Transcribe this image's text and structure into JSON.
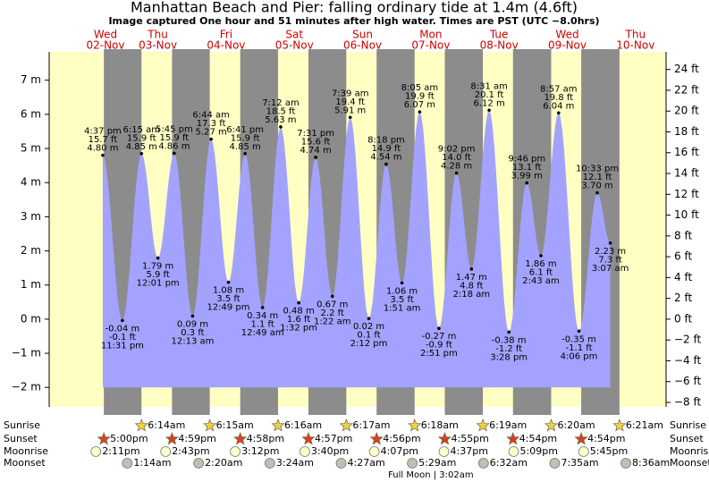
{
  "chart_data": {
    "type": "tide",
    "title": "Manhattan Beach and Pier: falling  ordinary tide at 1.4m (4.6ft)",
    "subtitle": "Image captured One hour and 51 minutes after high water. Times are PST (UTC −8.0hrs)",
    "row_labels": {
      "sunrise": "Sunrise",
      "sunset": "Sunset",
      "moonrise": "Moonrise",
      "moonset": "Moonset"
    },
    "ylim": [
      -2.57,
      7.83
    ],
    "yticks": [
      {
        "value": -2,
        "label": "−2 m"
      },
      {
        "value": -1,
        "label": "−1 m"
      },
      {
        "value": 0,
        "label": "0 m"
      },
      {
        "value": 1,
        "label": "1 m"
      },
      {
        "value": 2,
        "label": "2 m"
      },
      {
        "value": 3,
        "label": "3 m"
      },
      {
        "value": 4,
        "label": "4 m"
      },
      {
        "value": 5,
        "label": "5 m"
      },
      {
        "value": 6,
        "label": "6 m"
      },
      {
        "value": 7,
        "label": "7 m"
      }
    ],
    "y2lim": [
      -8.43,
      25.69
    ],
    "y2ticks": [
      {
        "value": -8,
        "label": "−8 ft"
      },
      {
        "value": -6,
        "label": "−6 ft"
      },
      {
        "value": -4,
        "label": "−4 ft"
      },
      {
        "value": -2,
        "label": "−2 ft"
      },
      {
        "value": 0,
        "label": "0 ft"
      },
      {
        "value": 2,
        "label": "2 ft"
      },
      {
        "value": 4,
        "label": "4 ft"
      },
      {
        "value": 6,
        "label": "6 ft"
      },
      {
        "value": 8,
        "label": "8 ft"
      },
      {
        "value": 10,
        "label": "10 ft"
      },
      {
        "value": 12,
        "label": "12 ft"
      },
      {
        "value": 14,
        "label": "14 ft"
      },
      {
        "value": 16,
        "label": "16 ft"
      },
      {
        "value": 18,
        "label": "18 ft"
      },
      {
        "value": 20,
        "label": "20 ft"
      },
      {
        "value": 22,
        "label": "22 ft"
      },
      {
        "value": 24,
        "label": "24 ft"
      }
    ],
    "colors": {
      "day": "#ffffc4",
      "night": "#8c8c8c",
      "water": "#a3a3ff",
      "weekday": "#d00000"
    },
    "days": [
      {
        "weekday": "Wed",
        "date": "02-Nov",
        "sunset": "5:00pm",
        "moonrise": "2:11pm",
        "tides": [
          {
            "time": "4:37 pm",
            "feet": "15.7 ft",
            "meters": 4.8,
            "meters_label": "4.80 m"
          },
          {
            "time": "11:31 pm",
            "feet": "-0.1 ft",
            "meters": -0.04,
            "meters_label": "-0.04 m"
          }
        ]
      },
      {
        "weekday": "Thu",
        "date": "03-Nov",
        "sunrise": "6:14am",
        "sunset": "4:59pm",
        "moonrise": "2:43pm",
        "moonset": "1:14am",
        "tides": [
          {
            "time": "6:15 am",
            "feet": "15.9 ft",
            "meters": 4.85,
            "meters_label": "4.85 m"
          },
          {
            "time": "12:01 pm",
            "feet": "5.9 ft",
            "meters": 1.79,
            "meters_label": "1.79 m"
          },
          {
            "time": "5:45 pm",
            "feet": "15.9 ft",
            "meters": 4.86,
            "meters_label": "4.86 m"
          }
        ]
      },
      {
        "weekday": "Fri",
        "date": "04-Nov",
        "sunrise": "6:15am",
        "sunset": "4:58pm",
        "moonrise": "3:12pm",
        "moonset": "2:20am",
        "tides": [
          {
            "time": "12:13 am",
            "feet": "0.3 ft",
            "meters": 0.09,
            "meters_label": "0.09 m"
          },
          {
            "time": "6:44 am",
            "feet": "17.3 ft",
            "meters": 5.27,
            "meters_label": "5.27 m"
          },
          {
            "time": "12:49 pm",
            "feet": "3.5 ft",
            "meters": 1.08,
            "meters_label": "1.08 m"
          },
          {
            "time": "6:41 pm",
            "feet": "15.9 ft",
            "meters": 4.85,
            "meters_label": "4.85 m"
          }
        ]
      },
      {
        "weekday": "Sat",
        "date": "05-Nov",
        "sunrise": "6:16am",
        "sunset": "4:57pm",
        "moonrise": "3:40pm",
        "moonset": "3:24am",
        "tides": [
          {
            "time": "12:49 am",
            "feet": "1.1 ft",
            "meters": 0.34,
            "meters_label": "0.34 m"
          },
          {
            "time": "7:12 am",
            "feet": "18.5 ft",
            "meters": 5.63,
            "meters_label": "5.63 m"
          },
          {
            "time": "1:32 pm",
            "feet": "1.6 ft",
            "meters": 0.48,
            "meters_label": "0.48 m"
          },
          {
            "time": "7:31 pm",
            "feet": "15.6 ft",
            "meters": 4.74,
            "meters_label": "4.74 m"
          }
        ]
      },
      {
        "weekday": "Sun",
        "date": "06-Nov",
        "sunrise": "6:17am",
        "sunset": "4:56pm",
        "moonrise": "4:07pm",
        "moonset": "4:27am",
        "tides": [
          {
            "time": "1:22 am",
            "feet": "2.2 ft",
            "meters": 0.67,
            "meters_label": "0.67 m"
          },
          {
            "time": "7:39 am",
            "feet": "19.4 ft",
            "meters": 5.91,
            "meters_label": "5.91 m"
          },
          {
            "time": "2:12 pm",
            "feet": "0.1 ft",
            "meters": 0.02,
            "meters_label": "0.02 m"
          },
          {
            "time": "8:18 pm",
            "feet": "14.9 ft",
            "meters": 4.54,
            "meters_label": "4.54 m"
          }
        ]
      },
      {
        "weekday": "Mon",
        "date": "07-Nov",
        "sunrise": "6:18am",
        "sunset": "4:55pm",
        "moonrise": "4:37pm",
        "moonset": "5:29am",
        "moon_phase": "Full Moon | 3:02am",
        "tides": [
          {
            "time": "1:51 am",
            "feet": "3.5 ft",
            "meters": 1.06,
            "meters_label": "1.06 m"
          },
          {
            "time": "8:05 am",
            "feet": "19.9 ft",
            "meters": 6.07,
            "meters_label": "6.07 m"
          },
          {
            "time": "2:51 pm",
            "feet": "-0.9 ft",
            "meters": -0.27,
            "meters_label": "-0.27 m"
          },
          {
            "time": "9:02 pm",
            "feet": "14.0 ft",
            "meters": 4.28,
            "meters_label": "4.28 m"
          }
        ]
      },
      {
        "weekday": "Tue",
        "date": "08-Nov",
        "sunrise": "6:19am",
        "sunset": "4:54pm",
        "moonrise": "5:09pm",
        "moonset": "6:32am",
        "tides": [
          {
            "time": "2:18 am",
            "feet": "4.8 ft",
            "meters": 1.47,
            "meters_label": "1.47 m"
          },
          {
            "time": "8:31 am",
            "feet": "20.1 ft",
            "meters": 6.12,
            "meters_label": "6.12 m"
          },
          {
            "time": "3:28 pm",
            "feet": "-1.2 ft",
            "meters": -0.38,
            "meters_label": "-0.38 m"
          },
          {
            "time": "9:46 pm",
            "feet": "13.1 ft",
            "meters": 3.99,
            "meters_label": "3.99 m"
          }
        ]
      },
      {
        "weekday": "Wed",
        "date": "09-Nov",
        "sunrise": "6:20am",
        "sunset": "4:54pm",
        "moonrise": "5:45pm",
        "moonset": "7:35am",
        "tides": [
          {
            "time": "2:43 am",
            "feet": "6.1 ft",
            "meters": 1.86,
            "meters_label": "1.86 m"
          },
          {
            "time": "8:57 am",
            "feet": "19.8 ft",
            "meters": 6.04,
            "meters_label": "6.04 m"
          },
          {
            "time": "4:06 pm",
            "feet": "-1.1 ft",
            "meters": -0.35,
            "meters_label": "-0.35 m"
          },
          {
            "time": "10:33 pm",
            "feet": "12.1 ft",
            "meters": 3.7,
            "meters_label": "3.70 m"
          }
        ]
      },
      {
        "weekday": "Thu",
        "date": "10-Nov",
        "sunrise": "6:21am",
        "moonset": "8:36am",
        "tides": [
          {
            "time": "3:07 am",
            "feet": "7.3 ft",
            "meters": 2.23,
            "meters_label": "2.23 m"
          }
        ]
      }
    ]
  }
}
